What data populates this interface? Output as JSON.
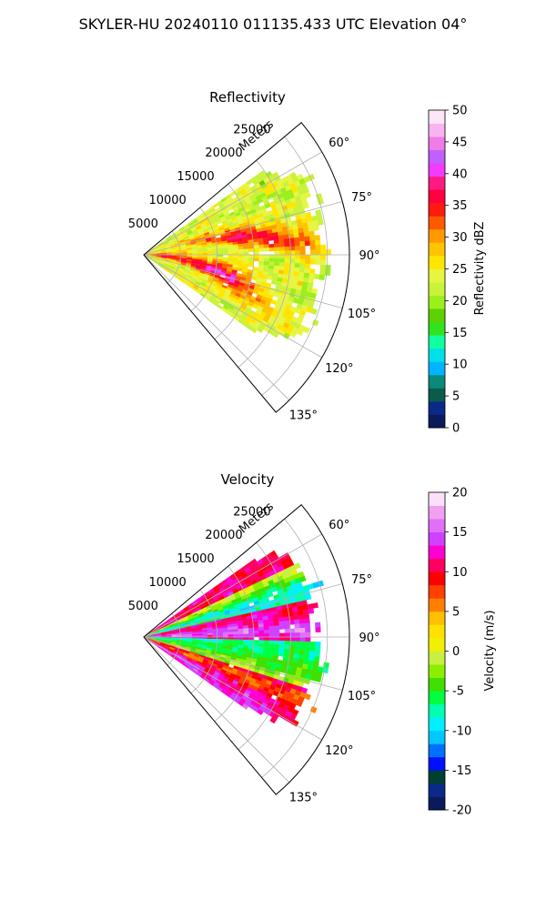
{
  "figure": {
    "title": "SKYLER-HU  20240110  011135.433 UTC Elevation 04°"
  },
  "chart_data": [
    {
      "type": "heatmap",
      "projection": "polar-sector",
      "title": "Reflectivity",
      "radial_label": "Meters",
      "radial_ticks": [
        "5000",
        "10000",
        "15000",
        "20000",
        "25000"
      ],
      "radial_tick_values": [
        5000,
        10000,
        15000,
        20000,
        25000
      ],
      "rmax": 28000,
      "angle_ticks": [
        "60°",
        "75°",
        "90°",
        "105°",
        "120°",
        "135°"
      ],
      "angle_tick_values": [
        60,
        75,
        90,
        105,
        120,
        135
      ],
      "angle_range": [
        50,
        140
      ],
      "grid": true,
      "colorbar": {
        "label": "Reflectivity dBZ",
        "min": 0,
        "max": 50,
        "ticks": [
          "0",
          "5",
          "10",
          "15",
          "20",
          "25",
          "30",
          "35",
          "40",
          "45",
          "50"
        ],
        "tick_values": [
          0,
          5,
          10,
          15,
          20,
          25,
          30,
          35,
          40,
          45,
          50
        ]
      },
      "field_description": {
        "sector_az_range": [
          55,
          125
        ],
        "data_range_m": 26000,
        "dominant_values": [
          22,
          28,
          35
        ],
        "band_features": [
          {
            "az": 80,
            "range_m": [
              8000,
              24000
            ],
            "value": 36
          },
          {
            "az": 100,
            "range_m": [
              5000,
              16000
            ],
            "value": 38
          }
        ]
      }
    },
    {
      "type": "heatmap",
      "projection": "polar-sector",
      "title": "Velocity",
      "radial_label": "Meters",
      "radial_ticks": [
        "5000",
        "10000",
        "15000",
        "20000",
        "25000"
      ],
      "radial_tick_values": [
        5000,
        10000,
        15000,
        20000,
        25000
      ],
      "rmax": 28000,
      "angle_ticks": [
        "60°",
        "75°",
        "90°",
        "105°",
        "120°",
        "135°"
      ],
      "angle_tick_values": [
        60,
        75,
        90,
        105,
        120,
        135
      ],
      "angle_range": [
        50,
        140
      ],
      "grid": true,
      "colorbar": {
        "label": "Velocity (m/s)",
        "min": -20,
        "max": 20,
        "ticks": [
          "-20",
          "-15",
          "-10",
          "-5",
          "0",
          "5",
          "10",
          "15",
          "20"
        ],
        "tick_values": [
          -20,
          -15,
          -10,
          -5,
          0,
          5,
          10,
          15,
          20
        ]
      },
      "field_description": {
        "sector_az_range": [
          55,
          125
        ],
        "data_range_m": 26000,
        "dominant_values": [
          -9,
          0,
          10,
          15
        ]
      }
    }
  ],
  "colors": {
    "grid": "#b0b0b0",
    "axis": "#000000",
    "reflectivity_colormap": [
      "#0b1a5a",
      "#0a2a8a",
      "#0a5c4a",
      "#0a8a7a",
      "#00b4ff",
      "#00e0e8",
      "#12ffa0",
      "#31e31f",
      "#5fd000",
      "#9bef1a",
      "#c9f23a",
      "#e7f542",
      "#ffe600",
      "#ffc400",
      "#ff9a00",
      "#ff5a00",
      "#ff1a10",
      "#ff0040",
      "#ff1a80",
      "#f13cff",
      "#c060ff",
      "#f07ce8",
      "#f7b4ef",
      "#fde6f8"
    ],
    "velocity_colormap": [
      "#0b1a5a",
      "#0a2a8a",
      "#004030",
      "#0010ff",
      "#0070ff",
      "#00c8ff",
      "#00f0ff",
      "#00ffb0",
      "#00ff40",
      "#40e000",
      "#8bf000",
      "#c8f040",
      "#f0f000",
      "#ffe000",
      "#ffc000",
      "#ff8000",
      "#ff4000",
      "#ff0000",
      "#ff0060",
      "#ff00d0",
      "#d040ff",
      "#e070f8",
      "#f0a0f0",
      "#fae0fa"
    ]
  }
}
